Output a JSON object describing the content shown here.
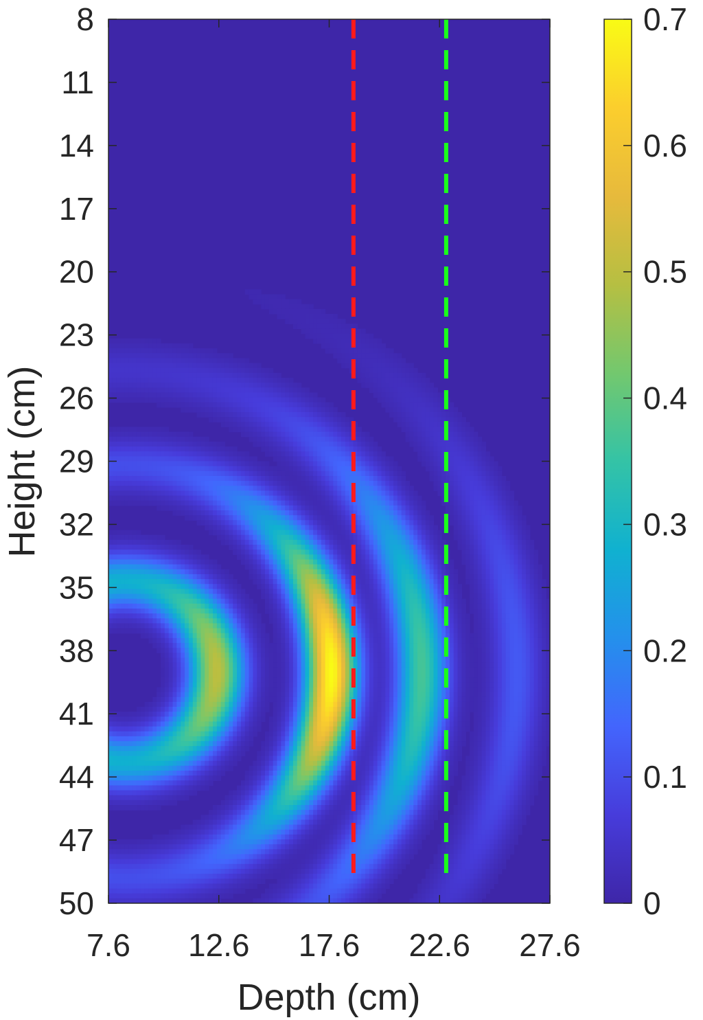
{
  "chart_data": {
    "type": "heatmap",
    "title": "",
    "xlabel": "Depth (cm)",
    "ylabel": "Height (cm)",
    "xlim": [
      7.6,
      27.6
    ],
    "ylim": [
      8,
      50
    ],
    "y_reversed": true,
    "x_ticks": [
      "7.6",
      "12.6",
      "17.6",
      "22.6",
      "27.6"
    ],
    "y_ticks": [
      "8",
      "11",
      "14",
      "17",
      "20",
      "23",
      "26",
      "29",
      "32",
      "35",
      "38",
      "41",
      "44",
      "47",
      "50"
    ],
    "colorbar": {
      "colormap": "parula",
      "range": [
        0,
        0.7
      ],
      "ticks": [
        "0",
        "0.1",
        "0.2",
        "0.3",
        "0.4",
        "0.5",
        "0.6",
        "0.7"
      ]
    },
    "grid": false,
    "description_of_field": "Concentric arc-shaped intensity bands curving around a source near depth 9 cm, height 39 cm; bands centered at depths of roughly 12.6, 17.6, 21.5 and 26 cm with decreasing intensity outward.",
    "field_features": [
      {
        "band_depth": 12.6,
        "peak_height": 38.5,
        "peak_value": 0.5
      },
      {
        "band_depth": 17.6,
        "peak_height": 39.0,
        "peak_value": 0.7
      },
      {
        "band_depth": 21.4,
        "peak_height": 40.0,
        "peak_value": 0.36
      },
      {
        "band_depth": 25.8,
        "peak_height": 41.0,
        "peak_value": 0.12
      }
    ],
    "series": [
      {
        "style": "dashed",
        "color": "#ff1a1a",
        "x": [
          18.7,
          18.7
        ],
        "y": [
          8,
          49
        ]
      },
      {
        "style": "dashed",
        "color": "#1aff1a",
        "x": [
          22.9,
          22.9
        ],
        "y": [
          8,
          49
        ]
      }
    ]
  }
}
